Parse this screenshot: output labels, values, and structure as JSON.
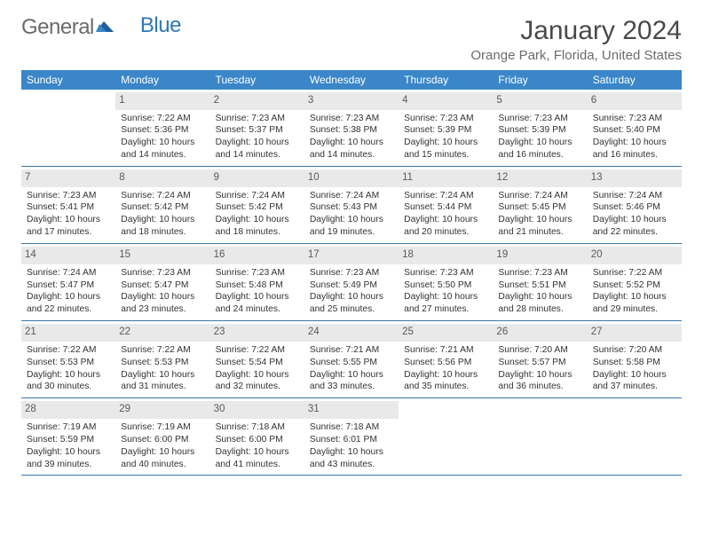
{
  "logo": {
    "part1": "General",
    "part2": "Blue"
  },
  "title": "January 2024",
  "location": "Orange Park, Florida, United States",
  "colors": {
    "header_bg": "#3a86c8",
    "header_text": "#ffffff",
    "daynum_bg": "#e9e9e9",
    "row_rule": "#3a76a8",
    "text": "#333333",
    "title_text": "#4a4a4a",
    "sub_text": "#6b6b6b"
  },
  "dow": [
    "Sunday",
    "Monday",
    "Tuesday",
    "Wednesday",
    "Thursday",
    "Friday",
    "Saturday"
  ],
  "weeks": [
    [
      null,
      {
        "n": "1",
        "sr": "7:22 AM",
        "ss": "5:36 PM",
        "dl": "10 hours and 14 minutes."
      },
      {
        "n": "2",
        "sr": "7:23 AM",
        "ss": "5:37 PM",
        "dl": "10 hours and 14 minutes."
      },
      {
        "n": "3",
        "sr": "7:23 AM",
        "ss": "5:38 PM",
        "dl": "10 hours and 14 minutes."
      },
      {
        "n": "4",
        "sr": "7:23 AM",
        "ss": "5:39 PM",
        "dl": "10 hours and 15 minutes."
      },
      {
        "n": "5",
        "sr": "7:23 AM",
        "ss": "5:39 PM",
        "dl": "10 hours and 16 minutes."
      },
      {
        "n": "6",
        "sr": "7:23 AM",
        "ss": "5:40 PM",
        "dl": "10 hours and 16 minutes."
      }
    ],
    [
      {
        "n": "7",
        "sr": "7:23 AM",
        "ss": "5:41 PM",
        "dl": "10 hours and 17 minutes."
      },
      {
        "n": "8",
        "sr": "7:24 AM",
        "ss": "5:42 PM",
        "dl": "10 hours and 18 minutes."
      },
      {
        "n": "9",
        "sr": "7:24 AM",
        "ss": "5:42 PM",
        "dl": "10 hours and 18 minutes."
      },
      {
        "n": "10",
        "sr": "7:24 AM",
        "ss": "5:43 PM",
        "dl": "10 hours and 19 minutes."
      },
      {
        "n": "11",
        "sr": "7:24 AM",
        "ss": "5:44 PM",
        "dl": "10 hours and 20 minutes."
      },
      {
        "n": "12",
        "sr": "7:24 AM",
        "ss": "5:45 PM",
        "dl": "10 hours and 21 minutes."
      },
      {
        "n": "13",
        "sr": "7:24 AM",
        "ss": "5:46 PM",
        "dl": "10 hours and 22 minutes."
      }
    ],
    [
      {
        "n": "14",
        "sr": "7:24 AM",
        "ss": "5:47 PM",
        "dl": "10 hours and 22 minutes."
      },
      {
        "n": "15",
        "sr": "7:23 AM",
        "ss": "5:47 PM",
        "dl": "10 hours and 23 minutes."
      },
      {
        "n": "16",
        "sr": "7:23 AM",
        "ss": "5:48 PM",
        "dl": "10 hours and 24 minutes."
      },
      {
        "n": "17",
        "sr": "7:23 AM",
        "ss": "5:49 PM",
        "dl": "10 hours and 25 minutes."
      },
      {
        "n": "18",
        "sr": "7:23 AM",
        "ss": "5:50 PM",
        "dl": "10 hours and 27 minutes."
      },
      {
        "n": "19",
        "sr": "7:23 AM",
        "ss": "5:51 PM",
        "dl": "10 hours and 28 minutes."
      },
      {
        "n": "20",
        "sr": "7:22 AM",
        "ss": "5:52 PM",
        "dl": "10 hours and 29 minutes."
      }
    ],
    [
      {
        "n": "21",
        "sr": "7:22 AM",
        "ss": "5:53 PM",
        "dl": "10 hours and 30 minutes."
      },
      {
        "n": "22",
        "sr": "7:22 AM",
        "ss": "5:53 PM",
        "dl": "10 hours and 31 minutes."
      },
      {
        "n": "23",
        "sr": "7:22 AM",
        "ss": "5:54 PM",
        "dl": "10 hours and 32 minutes."
      },
      {
        "n": "24",
        "sr": "7:21 AM",
        "ss": "5:55 PM",
        "dl": "10 hours and 33 minutes."
      },
      {
        "n": "25",
        "sr": "7:21 AM",
        "ss": "5:56 PM",
        "dl": "10 hours and 35 minutes."
      },
      {
        "n": "26",
        "sr": "7:20 AM",
        "ss": "5:57 PM",
        "dl": "10 hours and 36 minutes."
      },
      {
        "n": "27",
        "sr": "7:20 AM",
        "ss": "5:58 PM",
        "dl": "10 hours and 37 minutes."
      }
    ],
    [
      {
        "n": "28",
        "sr": "7:19 AM",
        "ss": "5:59 PM",
        "dl": "10 hours and 39 minutes."
      },
      {
        "n": "29",
        "sr": "7:19 AM",
        "ss": "6:00 PM",
        "dl": "10 hours and 40 minutes."
      },
      {
        "n": "30",
        "sr": "7:18 AM",
        "ss": "6:00 PM",
        "dl": "10 hours and 41 minutes."
      },
      {
        "n": "31",
        "sr": "7:18 AM",
        "ss": "6:01 PM",
        "dl": "10 hours and 43 minutes."
      },
      null,
      null,
      null
    ]
  ],
  "labels": {
    "sunrise": "Sunrise: ",
    "sunset": "Sunset: ",
    "daylight": "Daylight: "
  }
}
